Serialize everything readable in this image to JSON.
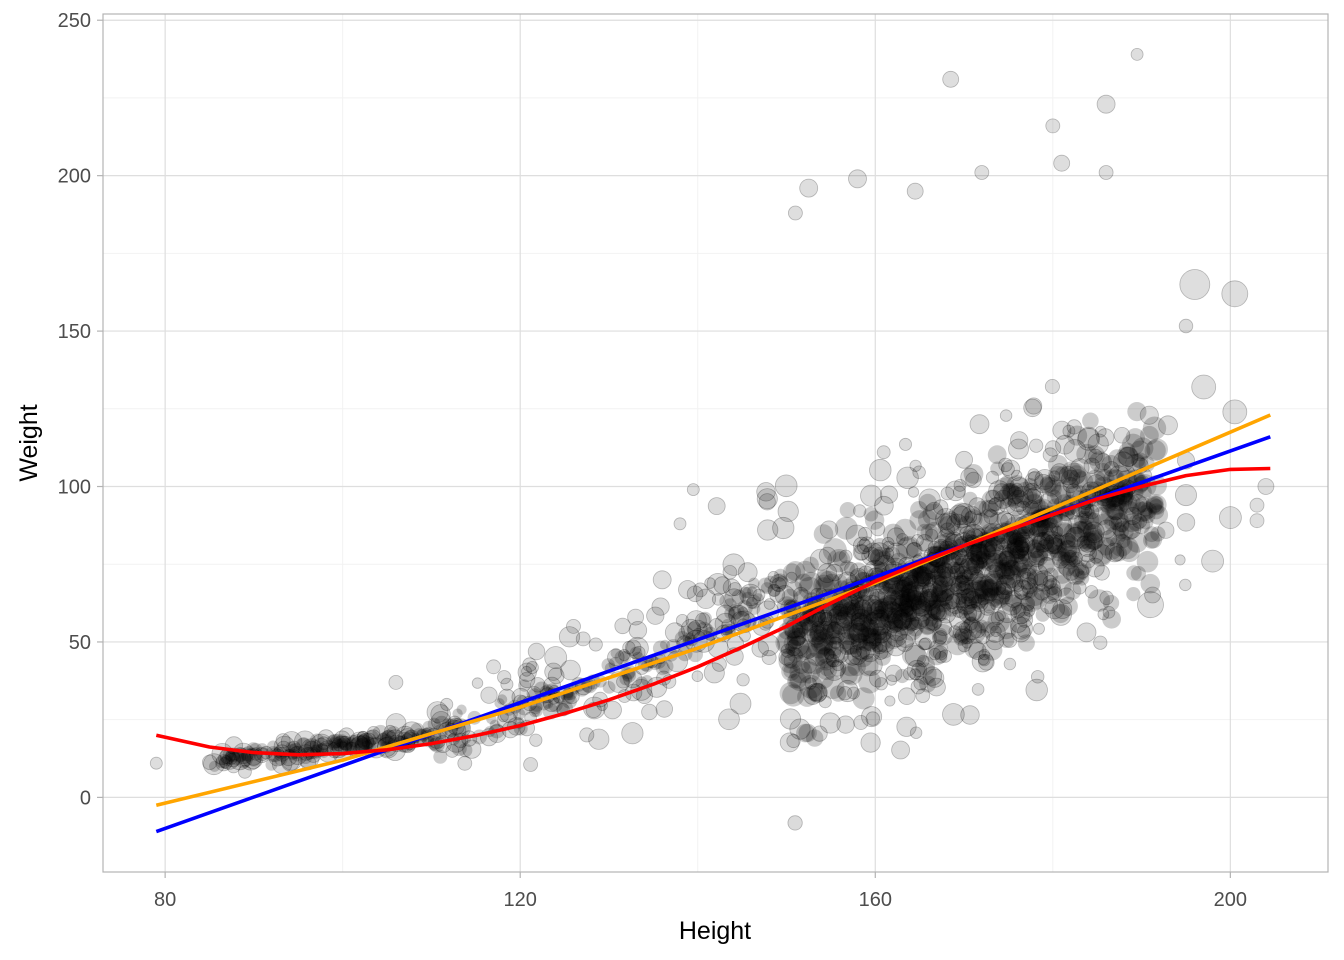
{
  "chart_data": {
    "type": "scatter",
    "title": "",
    "xlabel": "Height",
    "ylabel": "Weight",
    "xlim": [
      73,
      211
    ],
    "ylim": [
      -24,
      252
    ],
    "x_ticks": [
      80,
      120,
      160,
      200
    ],
    "x_minor_ticks": [
      100,
      140,
      180
    ],
    "y_ticks": [
      0,
      50,
      100,
      150,
      200,
      250
    ],
    "y_minor_ticks": [
      25,
      75,
      125,
      175,
      225
    ],
    "grid": true,
    "legend": "none",
    "point_color": "#000000",
    "points": {
      "count": 900,
      "x_range": [
        79,
        205
      ],
      "description_free": true
    },
    "outliers": [
      {
        "x": 189.5,
        "y": 239,
        "r": 6
      },
      {
        "x": 168.5,
        "y": 231,
        "r": 8
      },
      {
        "x": 186,
        "y": 223,
        "r": 9
      },
      {
        "x": 180,
        "y": 216,
        "r": 7
      },
      {
        "x": 164.5,
        "y": 195,
        "r": 8
      },
      {
        "x": 152.5,
        "y": 196,
        "r": 9
      },
      {
        "x": 158,
        "y": 199,
        "r": 9
      },
      {
        "x": 181,
        "y": 204,
        "r": 8
      },
      {
        "x": 200.5,
        "y": 162,
        "r": 13
      },
      {
        "x": 196,
        "y": 165,
        "r": 15
      },
      {
        "x": 197,
        "y": 132,
        "r": 12
      },
      {
        "x": 200.5,
        "y": 124,
        "r": 12
      },
      {
        "x": 204,
        "y": 100,
        "r": 8
      },
      {
        "x": 203,
        "y": 94,
        "r": 7
      },
      {
        "x": 203,
        "y": 89,
        "r": 7
      },
      {
        "x": 200,
        "y": 90,
        "r": 11
      },
      {
        "x": 198,
        "y": 76,
        "r": 11
      },
      {
        "x": 191,
        "y": 62,
        "r": 13
      },
      {
        "x": 139.5,
        "y": 99,
        "r": 6
      },
      {
        "x": 138,
        "y": 88,
        "r": 6
      },
      {
        "x": 136,
        "y": 70,
        "r": 9
      },
      {
        "x": 133,
        "y": 58,
        "r": 8
      },
      {
        "x": 126,
        "y": 55,
        "r": 7
      },
      {
        "x": 124,
        "y": 45,
        "r": 11
      },
      {
        "x": 117,
        "y": 42,
        "r": 7
      },
      {
        "x": 106,
        "y": 37,
        "r": 7
      },
      {
        "x": 79,
        "y": 11,
        "r": 6
      },
      {
        "x": 151,
        "y": 188,
        "r": 7
      },
      {
        "x": 172,
        "y": 201,
        "r": 7
      },
      {
        "x": 186,
        "y": 201,
        "r": 7
      }
    ],
    "series": [
      {
        "color": "#0000ff",
        "x": [
          79,
          204.5
        ],
        "y": [
          -11,
          116
        ]
      },
      {
        "color": "#ffa500",
        "x": [
          79,
          100,
          120,
          140,
          160,
          180,
          204.5
        ],
        "y": [
          -2.5,
          12,
          29,
          48,
          69,
          93,
          123
        ]
      },
      {
        "color": "#ff0000",
        "x": [
          79,
          85,
          90,
          95,
          100,
          105,
          110,
          115,
          120,
          125,
          130,
          135,
          140,
          145,
          150,
          155,
          160,
          165,
          170,
          175,
          180,
          185,
          190,
          195,
          200,
          204.5
        ],
        "y": [
          20,
          16.2,
          14.4,
          13.7,
          14.1,
          15.3,
          17.3,
          19.9,
          23.1,
          27,
          31.4,
          36.4,
          42,
          48.3,
          55,
          62.5,
          69.5,
          75.5,
          81,
          86,
          91,
          96,
          100,
          103.5,
          105.5,
          105.8
        ]
      }
    ]
  }
}
